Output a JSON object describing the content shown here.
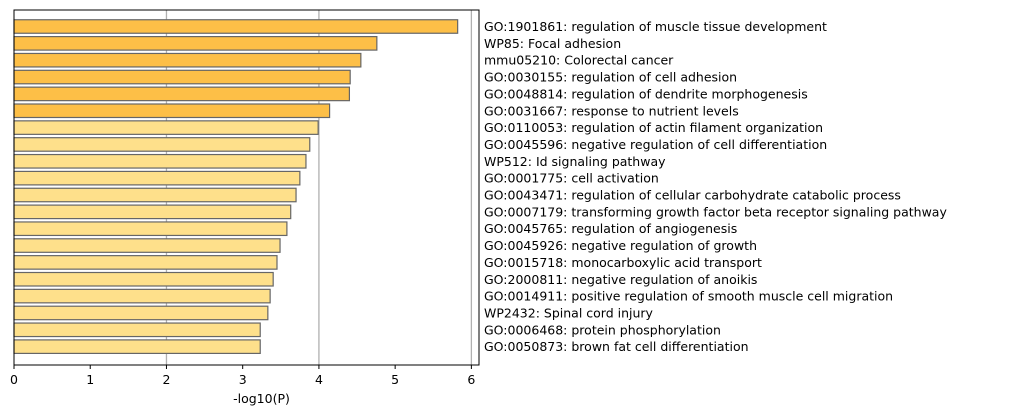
{
  "chart_data": {
    "type": "bar",
    "orientation": "horizontal",
    "xlabel": "-log10(P)",
    "xlim": [
      0,
      6.1
    ],
    "xticks": [
      0,
      1,
      2,
      3,
      4,
      5,
      6
    ],
    "grid": "vertical at x = 2, 4, 6",
    "legend": "none",
    "categories": [
      "GO:1901861: regulation of muscle tissue development",
      "WP85: Focal adhesion",
      "mmu05210: Colorectal cancer",
      "GO:0030155: regulation of cell adhesion",
      "GO:0048814: regulation of dendrite morphogenesis",
      "GO:0031667: response to nutrient levels",
      "GO:0110053: regulation of actin filament organization",
      "GO:0045596: negative regulation of cell differentiation",
      "WP512: Id signaling pathway",
      "GO:0001775: cell activation",
      "GO:0043471: regulation of cellular carbohydrate catabolic process",
      "GO:0007179: transforming growth factor beta receptor signaling pathway",
      "GO:0045765: regulation of angiogenesis",
      "GO:0045926: negative regulation of growth",
      "GO:0015718: monocarboxylic acid transport",
      "GO:2000811: negative regulation of anoikis",
      "GO:0014911: positive regulation of smooth muscle cell migration",
      "WP2432: Spinal cord injury",
      "GO:0006468: protein phosphorylation",
      "GO:0050873: brown fat cell differentiation"
    ],
    "values": [
      5.82,
      4.76,
      4.55,
      4.41,
      4.4,
      4.14,
      3.99,
      3.88,
      3.83,
      3.75,
      3.7,
      3.63,
      3.58,
      3.49,
      3.45,
      3.4,
      3.36,
      3.33,
      3.23,
      3.23
    ],
    "bar_colors": [
      "#fdbf47",
      "#fdbf47",
      "#fdbf47",
      "#fdbf47",
      "#fdbf47",
      "#fdbf47",
      "#fee08b",
      "#fee08b",
      "#fee08b",
      "#fee08b",
      "#fee08b",
      "#fee08b",
      "#fee08b",
      "#fee08b",
      "#fee08b",
      "#fee08b",
      "#fee08b",
      "#fee08b",
      "#fee08b",
      "#fee08b"
    ],
    "bar_edge_color": "#666666",
    "grid_color": "#b0b0b0"
  }
}
